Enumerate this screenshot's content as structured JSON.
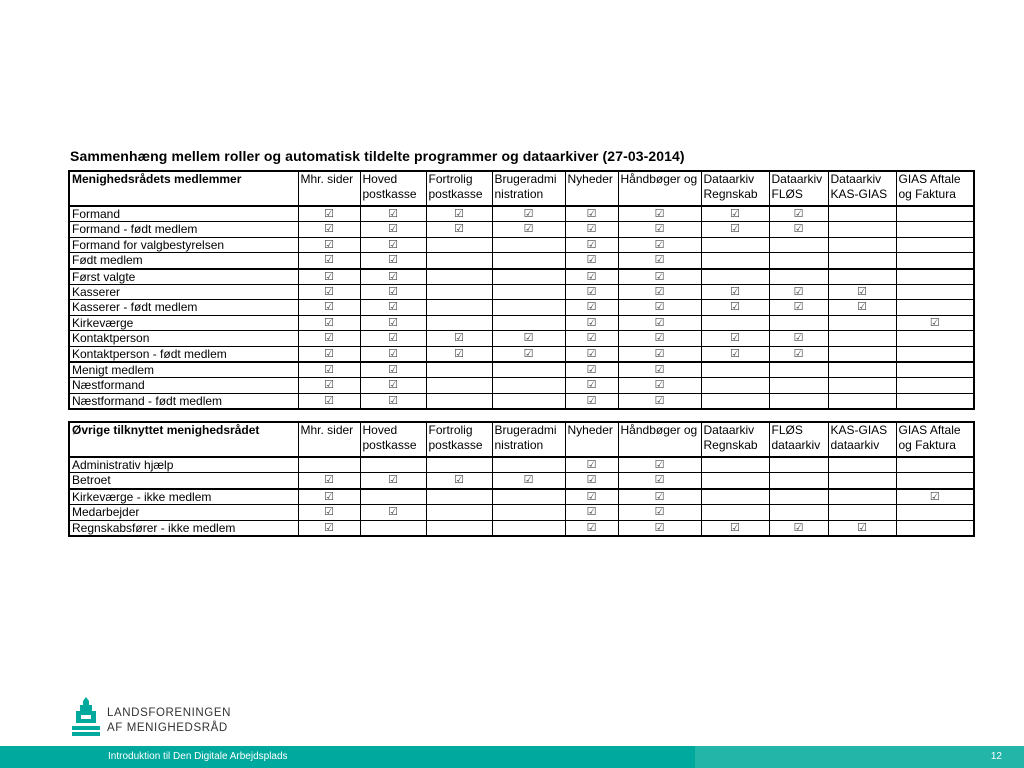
{
  "title": "Sammenhæng mellem roller og automatisk tildelte programmer og dataarkiver (27-03-2014)",
  "check_symbol": "☑",
  "table1": {
    "headers": [
      "Menighedsrådets medlemmer",
      "Mhr. sider",
      "Hoved postkasse",
      "Fortrolig postkasse",
      "Brugeradmi nistration",
      "Nyheder",
      "Håndbøger og",
      "Dataarkiv Regnskab",
      "Dataarkiv FLØS",
      "Dataarkiv KAS-GIAS",
      "GIAS Aftale og Faktura"
    ],
    "rows": [
      {
        "role": "Formand",
        "checks": [
          1,
          1,
          1,
          1,
          1,
          1,
          1,
          1,
          0,
          0
        ]
      },
      {
        "role": "Formand - født medlem",
        "checks": [
          1,
          1,
          1,
          1,
          1,
          1,
          1,
          1,
          0,
          0
        ]
      },
      {
        "role": "Formand for valgbestyrelsen",
        "checks": [
          1,
          1,
          0,
          0,
          1,
          1,
          0,
          0,
          0,
          0
        ]
      },
      {
        "role": "Født medlem",
        "checks": [
          1,
          1,
          0,
          0,
          1,
          1,
          0,
          0,
          0,
          0
        ],
        "thick": true
      },
      {
        "role": "Først valgte",
        "checks": [
          1,
          1,
          0,
          0,
          1,
          1,
          0,
          0,
          0,
          0
        ]
      },
      {
        "role": "Kasserer",
        "checks": [
          1,
          1,
          0,
          0,
          1,
          1,
          1,
          1,
          1,
          0
        ]
      },
      {
        "role": "Kasserer - født medlem",
        "checks": [
          1,
          1,
          0,
          0,
          1,
          1,
          1,
          1,
          1,
          0
        ]
      },
      {
        "role": "Kirkeværge",
        "checks": [
          1,
          1,
          0,
          0,
          1,
          1,
          0,
          0,
          0,
          1
        ]
      },
      {
        "role": "Kontaktperson",
        "checks": [
          1,
          1,
          1,
          1,
          1,
          1,
          1,
          1,
          0,
          0
        ]
      },
      {
        "role": "Kontaktperson - født medlem",
        "checks": [
          1,
          1,
          1,
          1,
          1,
          1,
          1,
          1,
          0,
          0
        ],
        "thick": true
      },
      {
        "role": "Menigt medlem",
        "checks": [
          1,
          1,
          0,
          0,
          1,
          1,
          0,
          0,
          0,
          0
        ]
      },
      {
        "role": "Næstformand",
        "checks": [
          1,
          1,
          0,
          0,
          1,
          1,
          0,
          0,
          0,
          0
        ]
      },
      {
        "role": "Næstformand - født medlem",
        "checks": [
          1,
          1,
          0,
          0,
          1,
          1,
          0,
          0,
          0,
          0
        ]
      }
    ]
  },
  "table2": {
    "headers": [
      "Øvrige tilknyttet menighedsrådet",
      "Mhr. sider",
      "Hoved postkasse",
      "Fortrolig postkasse",
      "Brugeradmi nistration",
      "Nyheder",
      "Håndbøger og",
      "Dataarkiv Regnskab",
      "FLØS dataarkiv",
      "KAS-GIAS dataarkiv",
      "GIAS Aftale og Faktura"
    ],
    "rows": [
      {
        "role": "Administrativ hjælp",
        "checks": [
          0,
          0,
          0,
          0,
          1,
          1,
          0,
          0,
          0,
          0
        ]
      },
      {
        "role": "Betroet",
        "checks": [
          1,
          1,
          1,
          1,
          1,
          1,
          0,
          0,
          0,
          0
        ],
        "thick": true
      },
      {
        "role": "Kirkeværge - ikke medlem",
        "checks": [
          1,
          0,
          0,
          0,
          1,
          1,
          0,
          0,
          0,
          1
        ]
      },
      {
        "role": "Medarbejder",
        "checks": [
          1,
          1,
          0,
          0,
          1,
          1,
          0,
          0,
          0,
          0
        ]
      },
      {
        "role": "Regnskabsfører - ikke medlem",
        "checks": [
          1,
          0,
          0,
          0,
          1,
          1,
          1,
          1,
          1,
          0
        ]
      }
    ]
  },
  "logo": {
    "line1": "LANDSFORENINGEN",
    "line2": "AF MENIGHEDSRÅD",
    "color": "#00a99d"
  },
  "footer": {
    "text": "Introduktion til Den Digitale Arbejdsplads",
    "page": "12",
    "color": "#00a99d",
    "color_right": "#22b5a8"
  }
}
